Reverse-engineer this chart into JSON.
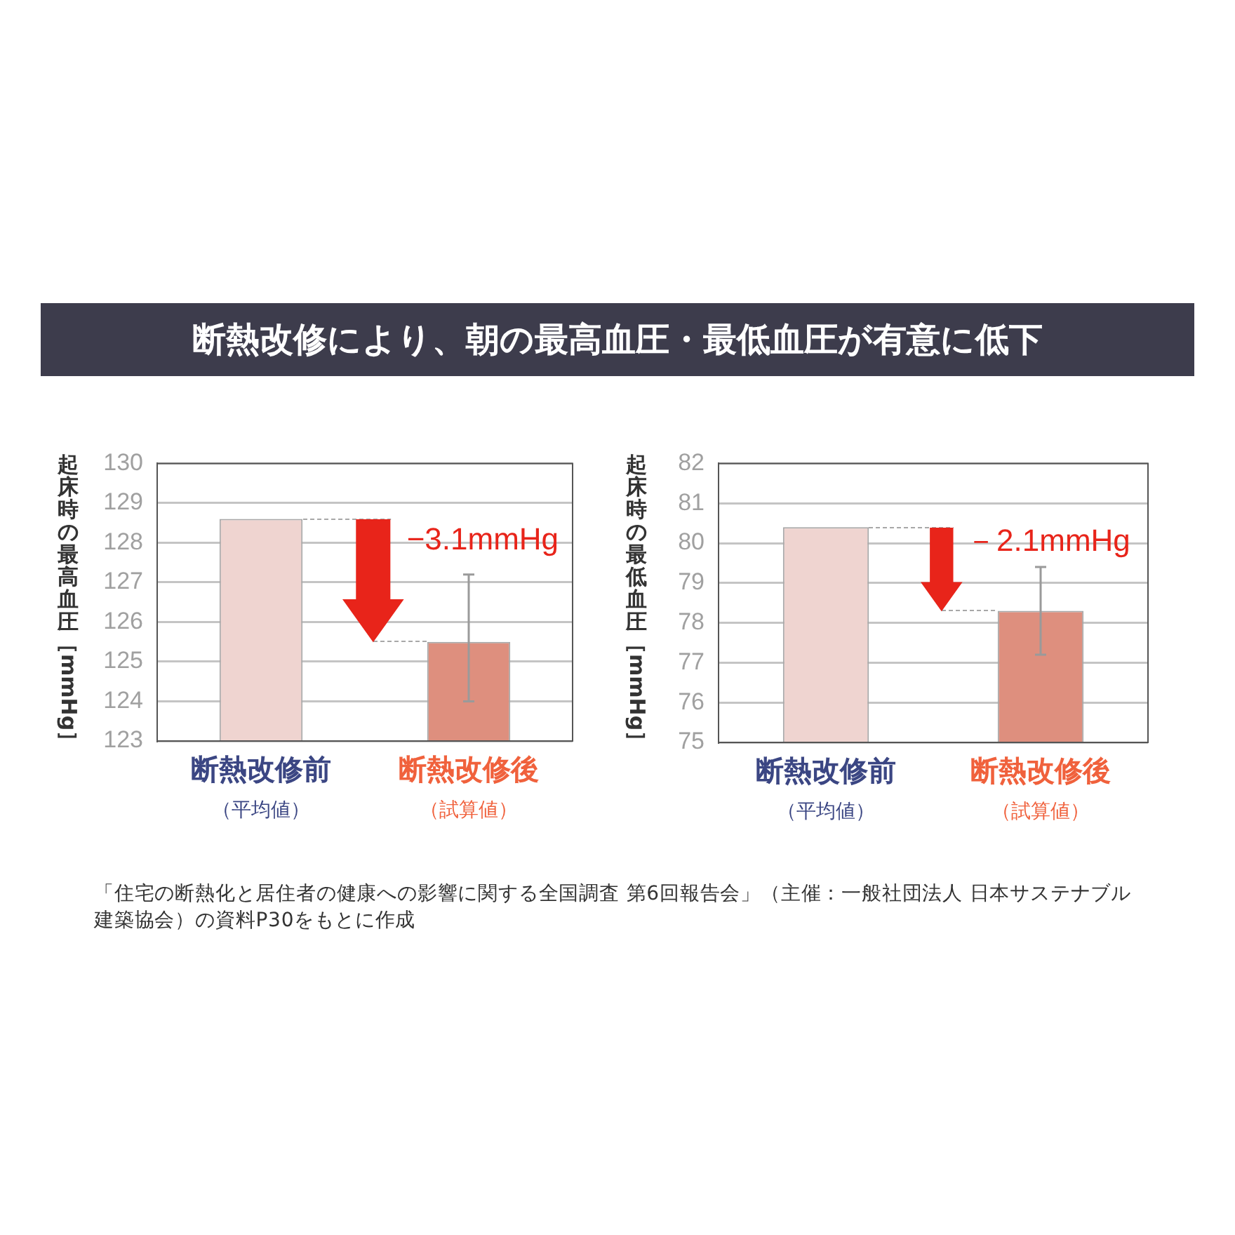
{
  "chart_data": [
    {
      "type": "bar",
      "title": "断熱改修により、朝の最高血圧・最低血圧が有意に低下",
      "ylabel": "起床時の最高血圧［mmHg］",
      "categories": [
        "断熱改修前（平均値）",
        "断熱改修後（試算値）"
      ],
      "values": [
        128.6,
        125.5
      ],
      "colors": [
        "#efd4d0",
        "#de8f7e"
      ],
      "errors": [
        null,
        [
          124.0,
          127.2
        ]
      ],
      "ylim": [
        123,
        130
      ],
      "yticks": [
        123,
        124,
        125,
        126,
        127,
        128,
        129,
        130
      ],
      "grid": "y",
      "annotations": [
        {
          "text": "−3.1mmHg",
          "x": "断熱改修後（試算値）",
          "y": 125.5
        }
      ]
    },
    {
      "type": "bar",
      "ylabel": "起床時の最低血圧［mmHg］",
      "categories": [
        "断熱改修前（平均値）",
        "断熱改修後（試算値）"
      ],
      "values": [
        80.4,
        78.3
      ],
      "colors": [
        "#efd4d0",
        "#de8f7e"
      ],
      "errors": [
        null,
        [
          77.2,
          79.4
        ]
      ],
      "ylim": [
        75,
        82
      ],
      "yticks": [
        75,
        76,
        77,
        78,
        79,
        80,
        81,
        82
      ],
      "grid": "y",
      "annotations": [
        {
          "text": "－2.1mmHg",
          "x": "断熱改修後（試算値）",
          "y": 78.3
        },
        "「住宅の断熱化と居住者の健康への影響に関する全国調査 第6回報告会」（主催：一般社団法人 日本サステナブル建築協会）の資料P30をもとに作成"
      ]
    }
  ]
}
